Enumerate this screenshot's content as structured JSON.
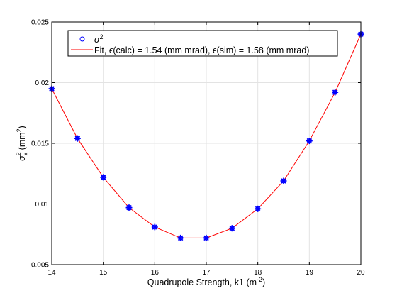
{
  "chart_data": {
    "type": "scatter",
    "xlabel_main": "Quadrupole Strength, k1 (m",
    "xlabel_sup": "-2",
    "xlabel_end": ")",
    "ylabel_sigma": "σ",
    "ylabel_sup": "2",
    "ylabel_sub": "x",
    "ylabel_units_pre": " (mm",
    "ylabel_units_sup": "2",
    "ylabel_units_end": ")",
    "xlim": [
      14,
      20
    ],
    "ylim": [
      0.005,
      0.025
    ],
    "x_ticks": [
      "14",
      "15",
      "16",
      "17",
      "18",
      "19",
      "20"
    ],
    "y_ticks": [
      "0.005",
      "0.01",
      "0.015",
      "0.02",
      "0.025"
    ],
    "grid": true,
    "legend_position": "top",
    "legend": {
      "measured_sigma": "σ",
      "measured_sup": "2",
      "fit_text": "Fit, ϵ(calc) = 1.54 (mm mrad), ϵ(sim) = 1.58 (mm mrad)"
    },
    "series": [
      {
        "marker": "asterisk",
        "color": "#0000ff",
        "x": [
          14,
          14.5,
          15,
          15.5,
          16,
          16.5,
          17,
          17.5,
          18,
          18.5,
          19,
          19.5,
          20
        ],
        "y": [
          0.0195,
          0.0154,
          0.0122,
          0.0097,
          0.0081,
          0.0072,
          0.0072,
          0.008,
          0.0096,
          0.0119,
          0.0152,
          0.0192,
          0.024
        ]
      },
      {
        "marker": "circle",
        "color": "#0000ff",
        "x": [
          14,
          14.5,
          15,
          15.5,
          16,
          16.5,
          17,
          17.5,
          18,
          18.5,
          19,
          19.5,
          20
        ],
        "y": [
          0.0195,
          0.0154,
          0.0122,
          0.0097,
          0.0081,
          0.0072,
          0.0072,
          0.008,
          0.0096,
          0.0119,
          0.0152,
          0.0192,
          0.024
        ]
      },
      {
        "line": true,
        "color": "#ff0000",
        "x": [
          14,
          14.5,
          15,
          15.5,
          16,
          16.5,
          17,
          17.5,
          18,
          18.5,
          19,
          19.5,
          20
        ],
        "y": [
          0.0195,
          0.0154,
          0.0122,
          0.0097,
          0.0081,
          0.0072,
          0.0072,
          0.008,
          0.0096,
          0.0119,
          0.0152,
          0.0192,
          0.024
        ]
      }
    ]
  }
}
